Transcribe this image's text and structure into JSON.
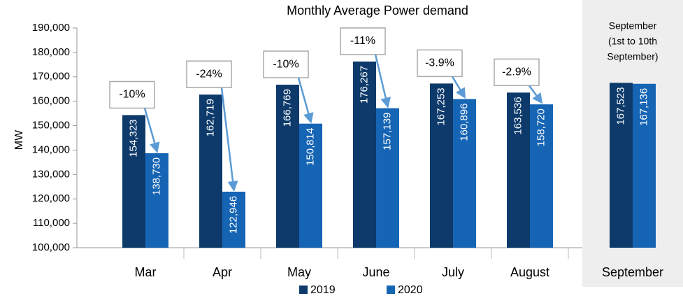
{
  "chart_data": {
    "type": "bar",
    "title": "Monthly Average Power demand",
    "y_label": "MW",
    "categories": [
      "Mar",
      "Apr",
      "May",
      "June",
      "July",
      "August",
      "September"
    ],
    "series": [
      {
        "name": "2019",
        "color": "#0d3a6a",
        "values": [
          154323,
          162719,
          166769,
          176267,
          167253,
          163536,
          167523
        ],
        "value_labels": [
          "154,323",
          "162,719",
          "166,769",
          "176,267",
          "167,253",
          "163,536",
          "167,523"
        ]
      },
      {
        "name": "2020",
        "color": "#1664b4",
        "values": [
          138730,
          122946,
          150814,
          157139,
          160896,
          158720,
          167136
        ],
        "value_labels": [
          "138,730",
          "122,946",
          "150,814",
          "157,139",
          "160,896",
          "158,720",
          "167,136"
        ]
      }
    ],
    "changes": [
      "-10%",
      "-24%",
      "-10%",
      "-11%",
      "-3.9%",
      "-2.9%"
    ],
    "highlight_note": [
      "September",
      "(1st to 10th",
      "September)"
    ],
    "ylim": [
      100000,
      190000
    ],
    "yticks": [
      {
        "value": 100000,
        "label": "100,000"
      },
      {
        "value": 110000,
        "label": "110,000"
      },
      {
        "value": 120000,
        "label": "120,000"
      },
      {
        "value": 130000,
        "label": "130,000"
      },
      {
        "value": 140000,
        "label": "140,000"
      },
      {
        "value": 150000,
        "label": "150,000"
      },
      {
        "value": 160000,
        "label": "160,000"
      },
      {
        "value": 170000,
        "label": "170,000"
      },
      {
        "value": 180000,
        "label": "180,000"
      },
      {
        "value": 190000,
        "label": "190,000"
      }
    ],
    "legend": "bottom"
  }
}
